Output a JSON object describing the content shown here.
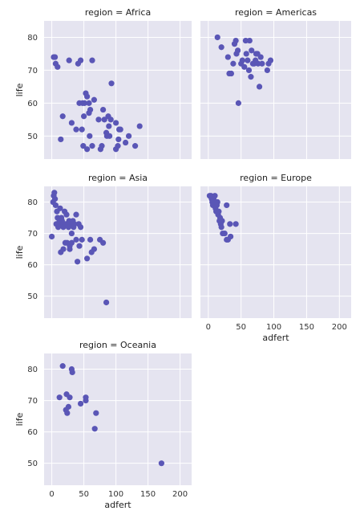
{
  "chart_data": {
    "type": "scatter",
    "xlabel": "adfert",
    "ylabel": "life",
    "xlim": [
      -12,
      218
    ],
    "ylim": [
      43,
      85
    ],
    "x_ticks": [
      0,
      50,
      100,
      150,
      200
    ],
    "y_ticks": [
      50,
      60,
      70,
      80
    ],
    "marker_color": "#5a56b6",
    "panel_color": "#e5e4f0",
    "grid": true,
    "panels": [
      {
        "title": "region = Africa",
        "points": [
          [
            3,
            74
          ],
          [
            5,
            74
          ],
          [
            6,
            72
          ],
          [
            9,
            71
          ],
          [
            14,
            49
          ],
          [
            17,
            56
          ],
          [
            27,
            73
          ],
          [
            31,
            54
          ],
          [
            38,
            52
          ],
          [
            41,
            72
          ],
          [
            45,
            73
          ],
          [
            43,
            60
          ],
          [
            47,
            52
          ],
          [
            48,
            60
          ],
          [
            50,
            56
          ],
          [
            49,
            47
          ],
          [
            51,
            60
          ],
          [
            53,
            63
          ],
          [
            55,
            46
          ],
          [
            55,
            62
          ],
          [
            58,
            57
          ],
          [
            58,
            60
          ],
          [
            59,
            50
          ],
          [
            60,
            58
          ],
          [
            63,
            73
          ],
          [
            63,
            47
          ],
          [
            66,
            61
          ],
          [
            73,
            55
          ],
          [
            76,
            46
          ],
          [
            78,
            47
          ],
          [
            80,
            58
          ],
          [
            82,
            55
          ],
          [
            85,
            51
          ],
          [
            86,
            50
          ],
          [
            88,
            56
          ],
          [
            89,
            53
          ],
          [
            90,
            50
          ],
          [
            92,
            55
          ],
          [
            93,
            66
          ],
          [
            100,
            54
          ],
          [
            100,
            46
          ],
          [
            103,
            47
          ],
          [
            104,
            49
          ],
          [
            105,
            52
          ],
          [
            107,
            52
          ],
          [
            115,
            48
          ],
          [
            120,
            50
          ],
          [
            130,
            47
          ],
          [
            137,
            53
          ]
        ]
      },
      {
        "title": "region = Americas",
        "points": [
          [
            14,
            80
          ],
          [
            20,
            77
          ],
          [
            30,
            74
          ],
          [
            32,
            69
          ],
          [
            35,
            69
          ],
          [
            38,
            72
          ],
          [
            40,
            78
          ],
          [
            42,
            79
          ],
          [
            43,
            75
          ],
          [
            45,
            76
          ],
          [
            46,
            60
          ],
          [
            50,
            72
          ],
          [
            52,
            73
          ],
          [
            55,
            71
          ],
          [
            57,
            79
          ],
          [
            58,
            75
          ],
          [
            60,
            73
          ],
          [
            62,
            70
          ],
          [
            63,
            79
          ],
          [
            65,
            68
          ],
          [
            66,
            76
          ],
          [
            68,
            72
          ],
          [
            70,
            72
          ],
          [
            72,
            73
          ],
          [
            73,
            75
          ],
          [
            75,
            75
          ],
          [
            76,
            72
          ],
          [
            80,
            74
          ],
          [
            82,
            72
          ],
          [
            90,
            70
          ],
          [
            92,
            72
          ],
          [
            95,
            73
          ],
          [
            78,
            65
          ]
        ]
      },
      {
        "title": "region = Asia",
        "points": [
          [
            0,
            69
          ],
          [
            2,
            80
          ],
          [
            3,
            82
          ],
          [
            4,
            83
          ],
          [
            5,
            81
          ],
          [
            6,
            79
          ],
          [
            7,
            73
          ],
          [
            8,
            77
          ],
          [
            9,
            75
          ],
          [
            10,
            72
          ],
          [
            11,
            73
          ],
          [
            12,
            74
          ],
          [
            13,
            78
          ],
          [
            14,
            64
          ],
          [
            15,
            75
          ],
          [
            16,
            74
          ],
          [
            17,
            73
          ],
          [
            18,
            72
          ],
          [
            18,
            65
          ],
          [
            20,
            77
          ],
          [
            21,
            67
          ],
          [
            22,
            73
          ],
          [
            23,
            76
          ],
          [
            24,
            67
          ],
          [
            25,
            73
          ],
          [
            26,
            72
          ],
          [
            27,
            74
          ],
          [
            28,
            65
          ],
          [
            28,
            66
          ],
          [
            30,
            73
          ],
          [
            31,
            70
          ],
          [
            31,
            67
          ],
          [
            33,
            74
          ],
          [
            34,
            72
          ],
          [
            35,
            73
          ],
          [
            38,
            76
          ],
          [
            38,
            68
          ],
          [
            40,
            61
          ],
          [
            42,
            73
          ],
          [
            43,
            66
          ],
          [
            45,
            72
          ],
          [
            47,
            68
          ],
          [
            55,
            62
          ],
          [
            60,
            68
          ],
          [
            62,
            64
          ],
          [
            66,
            65
          ],
          [
            75,
            68
          ],
          [
            80,
            67
          ],
          [
            85,
            48
          ]
        ]
      },
      {
        "title": "region = Europe",
        "points": [
          [
            2,
            82
          ],
          [
            4,
            82
          ],
          [
            5,
            81
          ],
          [
            6,
            80
          ],
          [
            7,
            79
          ],
          [
            8,
            81
          ],
          [
            9,
            80
          ],
          [
            10,
            82
          ],
          [
            11,
            78
          ],
          [
            12,
            77
          ],
          [
            13,
            79
          ],
          [
            14,
            80
          ],
          [
            15,
            76
          ],
          [
            16,
            77
          ],
          [
            17,
            74
          ],
          [
            18,
            75
          ],
          [
            19,
            73
          ],
          [
            20,
            72
          ],
          [
            21,
            74
          ],
          [
            22,
            70
          ],
          [
            25,
            70
          ],
          [
            28,
            68
          ],
          [
            30,
            68
          ],
          [
            33,
            73
          ],
          [
            34,
            69
          ],
          [
            28,
            79
          ],
          [
            42,
            73
          ]
        ]
      },
      {
        "title": "region = Oceania",
        "points": [
          [
            12,
            71
          ],
          [
            17,
            81
          ],
          [
            22,
            67
          ],
          [
            23,
            72
          ],
          [
            24,
            66
          ],
          [
            26,
            68
          ],
          [
            28,
            71
          ],
          [
            31,
            80
          ],
          [
            32,
            79
          ],
          [
            45,
            69
          ],
          [
            53,
            70
          ],
          [
            53,
            71
          ],
          [
            67,
            61
          ],
          [
            69,
            66
          ],
          [
            171,
            50
          ]
        ]
      }
    ]
  }
}
